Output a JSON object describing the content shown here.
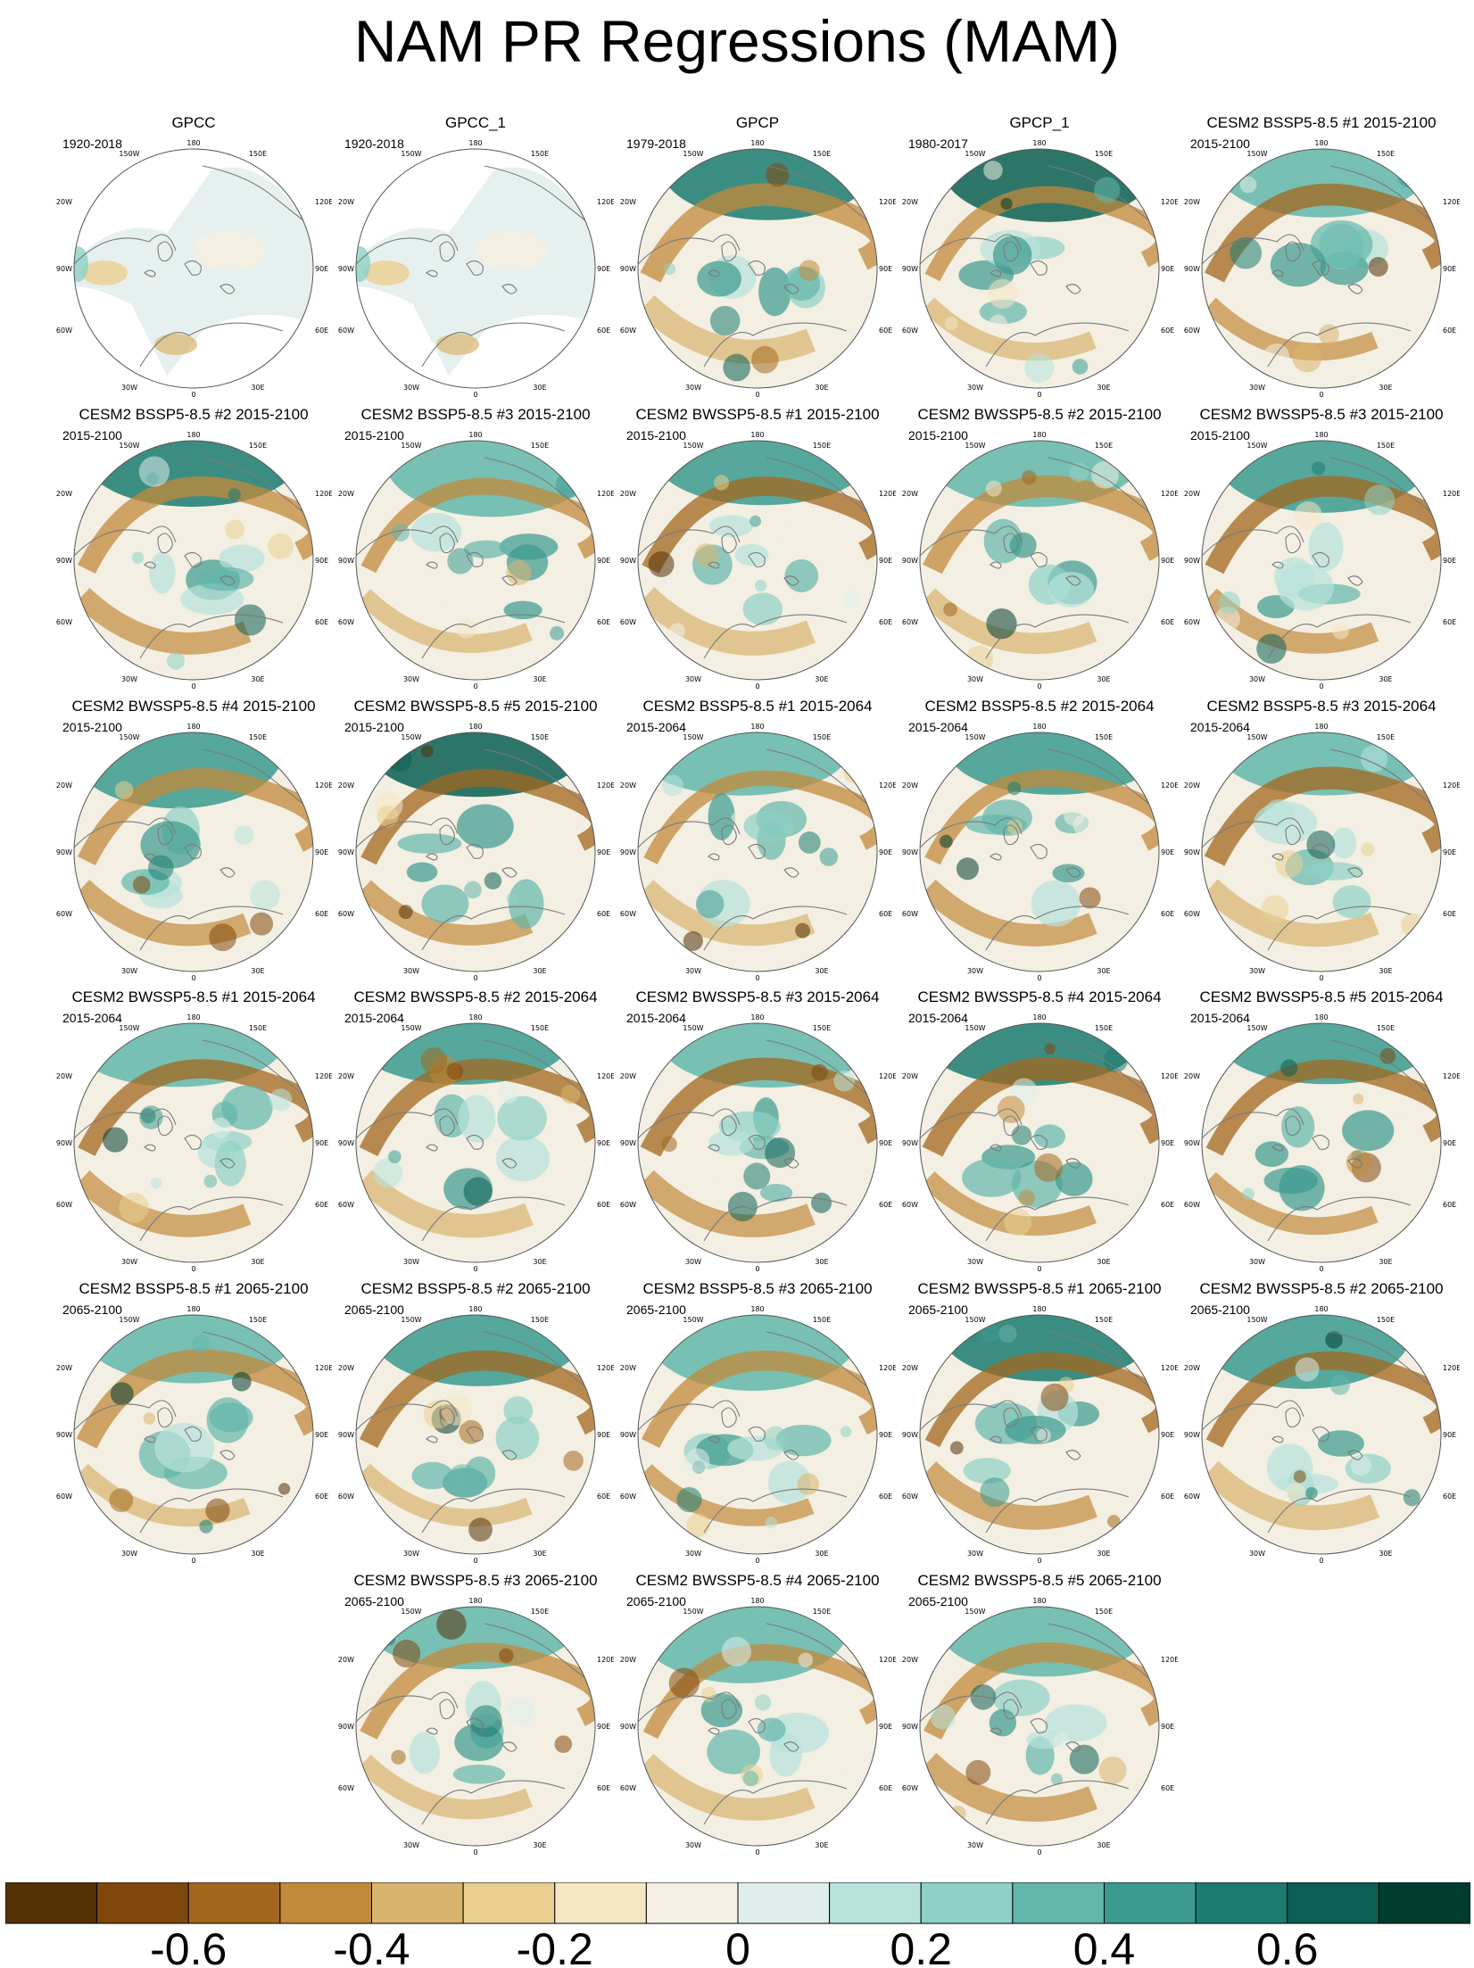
{
  "title": "NAM PR Regressions (MAM)",
  "map_labels": {
    "top": "180",
    "bottom": "0",
    "ul_top": "150W",
    "ur_top": "150E",
    "ul_side": "120W",
    "ur_side": "120E",
    "left": "90W",
    "right": "90E",
    "ll_side": "60W",
    "lr_side": "60E",
    "ll_bottom": "30W",
    "lr_bottom": "30E"
  },
  "panels": [
    {
      "title": "GPCC",
      "period": "1920-2018"
    },
    {
      "title": "GPCC_1",
      "period": "1920-2018"
    },
    {
      "title": "GPCP",
      "period": "1979-2018"
    },
    {
      "title": "GPCP_1",
      "period": "1980-2017"
    },
    {
      "title": "CESM2 BSSP5-8.5 #1 2015-2100",
      "period": "2015-2100"
    },
    {
      "title": "CESM2 BSSP5-8.5 #2 2015-2100",
      "period": "2015-2100"
    },
    {
      "title": "CESM2 BSSP5-8.5 #3 2015-2100",
      "period": "2015-2100"
    },
    {
      "title": "CESM2 BWSSP5-8.5 #1 2015-2100",
      "period": "2015-2100"
    },
    {
      "title": "CESM2 BWSSP5-8.5 #2 2015-2100",
      "period": "2015-2100"
    },
    {
      "title": "CESM2 BWSSP5-8.5 #3 2015-2100",
      "period": "2015-2100"
    },
    {
      "title": "CESM2 BWSSP5-8.5 #4 2015-2100",
      "period": "2015-2100"
    },
    {
      "title": "CESM2 BWSSP5-8.5 #5 2015-2100",
      "period": "2015-2100"
    },
    {
      "title": "CESM2 BSSP5-8.5 #1 2015-2064",
      "period": "2015-2064"
    },
    {
      "title": "CESM2 BSSP5-8.5 #2 2015-2064",
      "period": "2015-2064"
    },
    {
      "title": "CESM2 BSSP5-8.5 #3 2015-2064",
      "period": "2015-2064"
    },
    {
      "title": "CESM2 BWSSP5-8.5 #1 2015-2064",
      "period": "2015-2064"
    },
    {
      "title": "CESM2 BWSSP5-8.5 #2 2015-2064",
      "period": "2015-2064"
    },
    {
      "title": "CESM2 BWSSP5-8.5 #3 2015-2064",
      "period": "2015-2064"
    },
    {
      "title": "CESM2 BWSSP5-8.5 #4 2015-2064",
      "period": "2015-2064"
    },
    {
      "title": "CESM2 BWSSP5-8.5 #5 2015-2064",
      "period": "2015-2064"
    },
    {
      "title": "CESM2 BSSP5-8.5 #1 2065-2100",
      "period": "2065-2100"
    },
    {
      "title": "CESM2 BSSP5-8.5 #2 2065-2100",
      "period": "2065-2100"
    },
    {
      "title": "CESM2 BSSP5-8.5 #3 2065-2100",
      "period": "2065-2100"
    },
    {
      "title": "CESM2 BWSSP5-8.5 #1 2065-2100",
      "period": "2065-2100"
    },
    {
      "title": "CESM2 BWSSP5-8.5 #2 2065-2100",
      "period": "2065-2100"
    },
    {
      "title": "CESM2 BWSSP5-8.5 #3 2065-2100",
      "period": "2065-2100"
    },
    {
      "title": "CESM2 BWSSP5-8.5 #4 2065-2100",
      "period": "2065-2100"
    },
    {
      "title": "CESM2 BWSSP5-8.5 #5 2065-2100",
      "period": "2065-2100"
    }
  ],
  "colorbar": {
    "colors": [
      "#543005",
      "#7f470c",
      "#a3671d",
      "#c28a3b",
      "#d9b46d",
      "#ead08f",
      "#f5e6c4",
      "#f3efe3",
      "#ddeeeb",
      "#b7e3dc",
      "#8fd1c5",
      "#62b7ab",
      "#3a9a8f",
      "#1b7b70",
      "#0b5f54",
      "#003c30"
    ],
    "tick_labels": [
      "-0.6",
      "-0.4",
      "-0.2",
      "0",
      "0.2",
      "0.4",
      "0.6"
    ]
  },
  "colors": {
    "negative": "#a3671d",
    "positive": "#3a9a8f",
    "background": "#f3efe3",
    "coast": "#7a7a7a"
  }
}
